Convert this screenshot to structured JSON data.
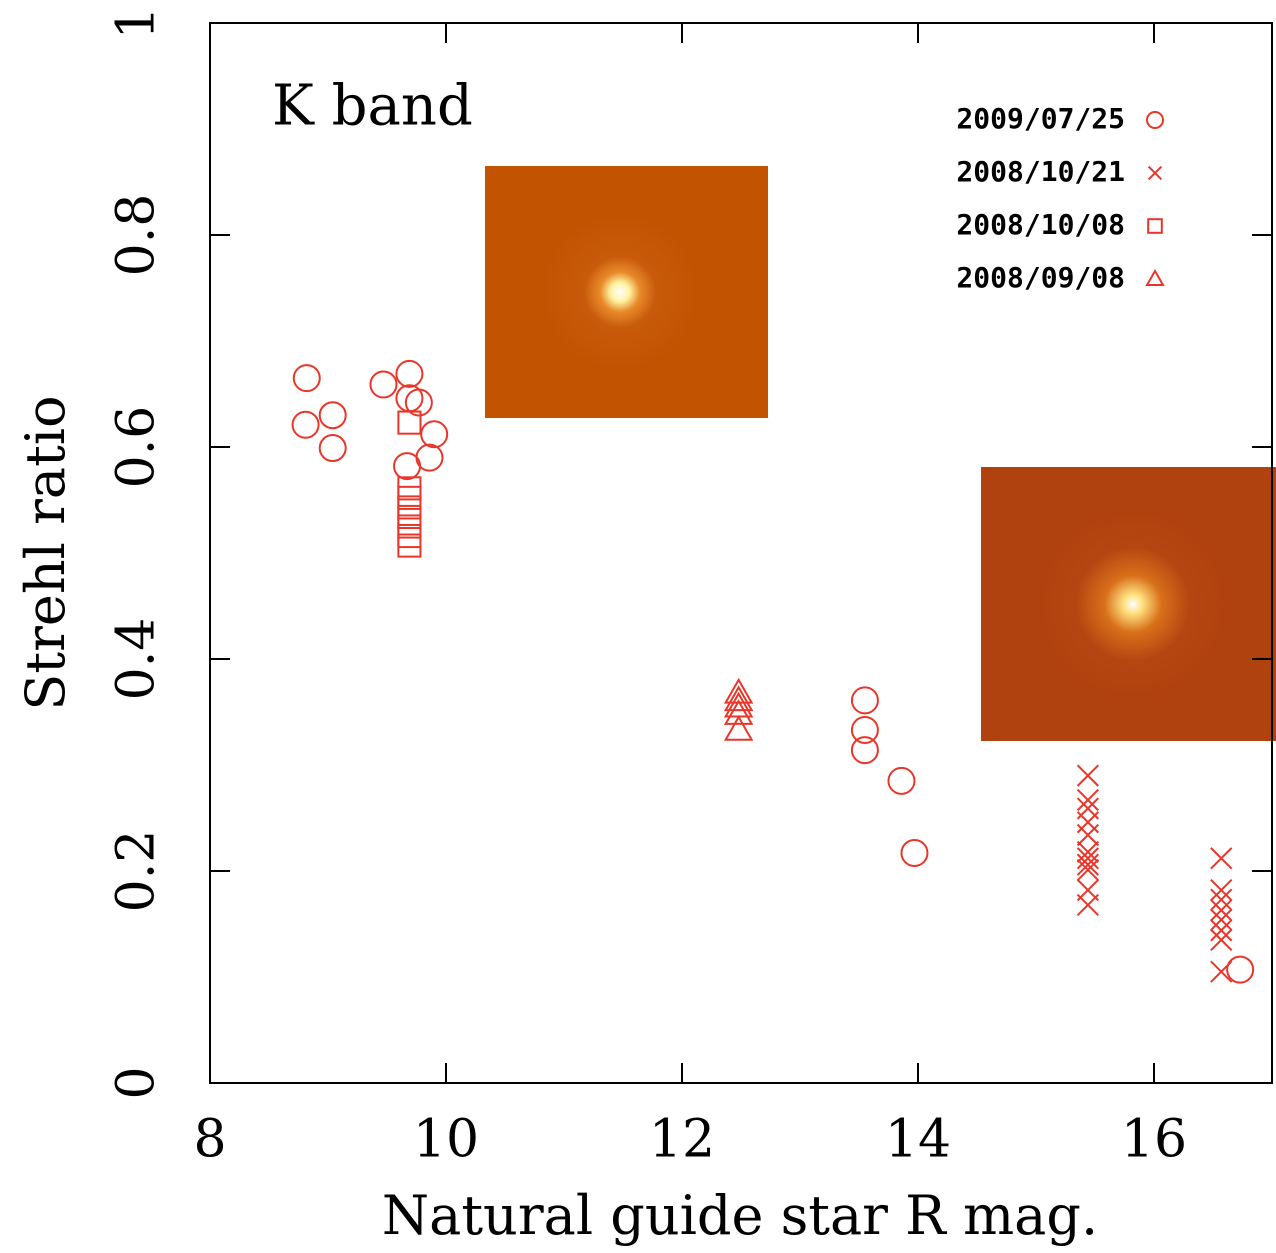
{
  "chart_data": {
    "type": "scatter",
    "xlabel": "Natural guide star R mag.",
    "ylabel": "Strehl ratio",
    "annotation": "K band",
    "xlim": [
      8,
      17
    ],
    "ylim": [
      0,
      1
    ],
    "xticks": [
      8,
      10,
      12,
      14,
      16
    ],
    "yticks": [
      0,
      0.2,
      0.4,
      0.6,
      0.8,
      1
    ],
    "legend": "upper right",
    "series": [
      {
        "name": "2009/07/25",
        "color": "#e8372a",
        "marker": "circle",
        "x": [
          8.82,
          8.81,
          9.04,
          9.04,
          9.47,
          9.69,
          9.69,
          9.77,
          9.9,
          9.86,
          9.67,
          13.55,
          13.55,
          13.55,
          13.86,
          13.97,
          16.73
        ],
        "values": [
          0.665,
          0.621,
          0.63,
          0.599,
          0.659,
          0.669,
          0.646,
          0.642,
          0.612,
          0.59,
          0.582,
          0.361,
          0.333,
          0.314,
          0.285,
          0.217,
          0.107
        ]
      },
      {
        "name": "2008/10/21",
        "color": "#e8372a",
        "marker": "x",
        "x": [
          15.44,
          15.44,
          15.44,
          15.44,
          15.44,
          15.44,
          15.44,
          15.44,
          15.44,
          15.44,
          15.44,
          16.57,
          16.57,
          16.57,
          16.57,
          16.57,
          16.57,
          16.57,
          16.57
        ],
        "values": [
          0.29,
          0.267,
          0.259,
          0.246,
          0.234,
          0.218,
          0.212,
          0.206,
          0.201,
          0.182,
          0.168,
          0.212,
          0.182,
          0.173,
          0.163,
          0.154,
          0.144,
          0.135,
          0.105
        ]
      },
      {
        "name": "2008/10/08",
        "color": "#e8372a",
        "marker": "square",
        "x": [
          9.69,
          9.69,
          9.69,
          9.69,
          9.69,
          9.69,
          9.69,
          9.69
        ],
        "values": [
          0.623,
          0.561,
          0.552,
          0.543,
          0.534,
          0.525,
          0.516,
          0.507
        ]
      },
      {
        "name": "2008/09/08",
        "color": "#e8372a",
        "marker": "triangle",
        "x": [
          12.48,
          12.48,
          12.48,
          12.48,
          12.48
        ],
        "values": [
          0.368,
          0.361,
          0.355,
          0.348,
          0.333
        ]
      }
    ]
  }
}
